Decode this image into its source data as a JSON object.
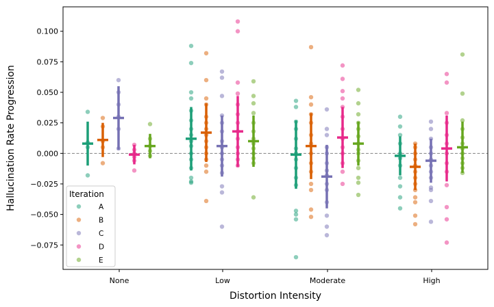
{
  "chart_data": {
    "type": "scatter",
    "xlabel": "Distortion Intensity",
    "ylabel": "Hallucination Rate Progression",
    "categories": [
      "None",
      "Low",
      "Moderate",
      "High"
    ],
    "ylim": [
      -0.095,
      0.12
    ],
    "yticks": [
      "0.100",
      "0.075",
      "0.050",
      "0.025",
      "0.000",
      "−0.025",
      "−0.050",
      "−0.075"
    ],
    "ytick_values": [
      0.1,
      0.075,
      0.05,
      0.025,
      0.0,
      -0.025,
      -0.05,
      -0.075
    ],
    "reference_line_y": 0.0,
    "grid": false,
    "legend": {
      "title": "Iteration",
      "placement": "lower-left"
    },
    "series": [
      {
        "name": "A",
        "color": "#1b9e77",
        "points": {
          "None": [
            0.034,
            0.009,
            0.005,
            -0.018
          ],
          "Low": [
            0.088,
            0.074,
            0.05,
            0.045,
            0.035,
            0.027,
            0.02,
            0.015,
            0.01,
            0.006,
            0.0,
            -0.005,
            -0.012,
            -0.02,
            -0.023,
            -0.024
          ],
          "Moderate": [
            0.043,
            0.038,
            0.026,
            0.02,
            0.012,
            0.004,
            0.0,
            -0.005,
            -0.012,
            -0.02,
            -0.026,
            -0.047,
            -0.05,
            -0.054,
            -0.085
          ],
          "High": [
            0.03,
            0.022,
            0.015,
            0.008,
            0.0,
            -0.004,
            -0.01,
            -0.02,
            -0.027,
            -0.036,
            -0.045
          ]
        },
        "mean": {
          "None": 0.008,
          "Low": 0.012,
          "Moderate": -0.001,
          "High": -0.002
        },
        "err": {
          "None": 0.018,
          "Low": 0.026,
          "Moderate": 0.028,
          "High": 0.016
        }
      },
      {
        "name": "B",
        "color": "#d95f02",
        "points": {
          "None": [
            0.029,
            0.022,
            0.01,
            0.005,
            -0.008
          ],
          "Low": [
            0.082,
            0.06,
            0.045,
            0.04,
            0.03,
            0.025,
            0.02,
            0.015,
            0.01,
            0.005,
            0.0,
            -0.005,
            -0.01,
            -0.015,
            -0.039
          ],
          "Moderate": [
            0.087,
            0.046,
            0.04,
            0.032,
            0.025,
            0.015,
            0.008,
            0.0,
            -0.008,
            -0.015,
            -0.025,
            -0.03,
            -0.046,
            -0.052
          ],
          "High": [
            0.008,
            0.005,
            0.0,
            -0.005,
            -0.01,
            -0.015,
            -0.02,
            -0.025,
            -0.03,
            -0.036,
            -0.04,
            -0.051,
            -0.058
          ]
        },
        "mean": {
          "None": 0.011,
          "Low": 0.017,
          "Moderate": 0.006,
          "High": -0.011
        },
        "err": {
          "None": 0.014,
          "Low": 0.024,
          "Moderate": 0.027,
          "High": 0.019
        }
      },
      {
        "name": "C",
        "color": "#7570b3",
        "points": {
          "None": [
            0.06,
            0.05,
            0.04,
            0.03,
            0.02,
            0.004
          ],
          "Low": [
            0.067,
            0.062,
            0.047,
            0.031,
            0.025,
            0.018,
            0.01,
            0.005,
            0.0,
            -0.005,
            -0.01,
            -0.016,
            -0.027,
            -0.032,
            -0.06
          ],
          "Moderate": [
            0.036,
            0.02,
            0.015,
            0.005,
            0.0,
            -0.008,
            -0.014,
            -0.018,
            -0.025,
            -0.03,
            -0.04,
            -0.051,
            -0.06,
            -0.067
          ],
          "High": [
            0.026,
            0.02,
            0.012,
            0.005,
            0.0,
            -0.005,
            -0.01,
            -0.015,
            -0.02,
            -0.028,
            -0.03,
            -0.039,
            -0.056
          ]
        },
        "mean": {
          "None": 0.029,
          "Low": 0.006,
          "Moderate": -0.019,
          "High": -0.006
        },
        "err": {
          "None": 0.026,
          "Low": 0.025,
          "Moderate": 0.026,
          "High": 0.018
        }
      },
      {
        "name": "D",
        "color": "#e7298a",
        "points": {
          "None": [
            0.007,
            0.003,
            0.0,
            -0.003,
            -0.006,
            -0.014
          ],
          "Low": [
            0.108,
            0.1,
            0.058,
            0.049,
            0.04,
            0.032,
            0.025,
            0.018,
            0.012,
            0.005,
            0.0,
            -0.005,
            -0.01
          ],
          "Moderate": [
            0.072,
            0.061,
            0.051,
            0.045,
            0.038,
            0.03,
            0.02,
            0.012,
            0.005,
            0.0,
            -0.008,
            -0.015,
            -0.025
          ],
          "High": [
            0.065,
            0.058,
            0.033,
            0.025,
            0.015,
            0.008,
            0.0,
            -0.008,
            -0.015,
            -0.026,
            -0.044,
            -0.054,
            -0.073
          ]
        },
        "mean": {
          "None": -0.001,
          "Low": 0.018,
          "Moderate": 0.013,
          "High": 0.004
        },
        "err": {
          "None": 0.008,
          "Low": 0.029,
          "Moderate": 0.025,
          "High": 0.027
        }
      },
      {
        "name": "E",
        "color": "#66a61e",
        "points": {
          "None": [
            0.024,
            0.012,
            0.006,
            0.002,
            -0.002
          ],
          "Low": [
            0.059,
            0.047,
            0.041,
            0.033,
            0.025,
            0.018,
            0.012,
            0.008,
            0.004,
            0.0,
            -0.004,
            -0.008,
            -0.036
          ],
          "Moderate": [
            0.052,
            0.041,
            0.032,
            0.025,
            0.02,
            0.014,
            0.008,
            0.003,
            0.0,
            -0.006,
            -0.012,
            -0.02,
            -0.024,
            -0.034
          ],
          "High": [
            0.081,
            0.049,
            0.027,
            0.02,
            0.013,
            0.008,
            0.004,
            0.0,
            -0.004,
            -0.008,
            -0.012,
            -0.016
          ]
        },
        "mean": {
          "None": 0.006,
          "Low": 0.01,
          "Moderate": 0.008,
          "High": 0.005
        },
        "err": {
          "None": 0.01,
          "Low": 0.021,
          "Moderate": 0.018,
          "High": 0.021
        }
      }
    ]
  }
}
